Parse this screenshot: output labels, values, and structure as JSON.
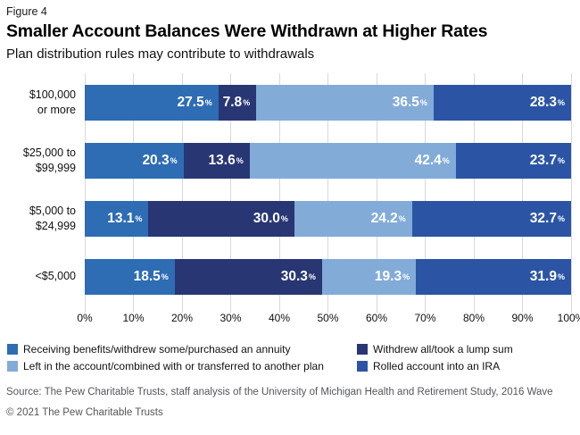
{
  "figure_label": "Figure 4",
  "title": "Smaller Account Balances Were Withdrawn at Higher Rates",
  "subtitle": "Plan distribution rules may contribute to withdrawals",
  "chart_data": {
    "type": "bar",
    "variant": "horizontal-stacked",
    "title": "Smaller Account Balances Were Withdrawn at Higher Rates",
    "categories": [
      "$100,000\nor more",
      "$25,000 to\n$99,999",
      "$5,000 to\n$24,999",
      "<$5,000"
    ],
    "series": [
      {
        "name": "Receiving benefits/withdrew some/purchased an annuity",
        "color": "#2e6cb4",
        "values": [
          27.5,
          20.3,
          13.1,
          18.5
        ]
      },
      {
        "name": "Withdrew all/took a lump sum",
        "color": "#283674",
        "values": [
          7.8,
          13.6,
          30.0,
          30.3
        ]
      },
      {
        "name": "Left in the account/combined with or transferred to another plan",
        "color": "#82abd8",
        "values": [
          36.5,
          42.4,
          24.2,
          19.3
        ]
      },
      {
        "name": "Rolled account into an IRA",
        "color": "#2b55a4",
        "values": [
          28.3,
          23.7,
          32.7,
          31.9
        ]
      }
    ],
    "x_ticks": [
      "0%",
      "10%",
      "20%",
      "30%",
      "40%",
      "50%",
      "60%",
      "70%",
      "80%",
      "90%",
      "100%"
    ],
    "xlim": [
      0,
      100
    ],
    "grid": true,
    "gridline_color": "#d9d9d9",
    "value_suffix": "%",
    "legend_position": "bottom"
  },
  "source_line": "Source: The Pew Charitable Trusts, staff analysis of the University of Michigan Health and Retirement Study, 2016 Wave",
  "copyright_line": "© 2021 The Pew Charitable Trusts"
}
